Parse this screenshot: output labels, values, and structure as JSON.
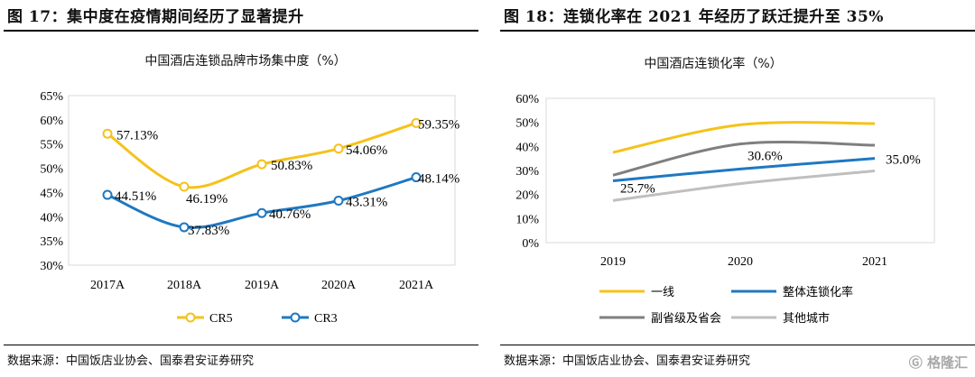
{
  "left_figure": {
    "figure_title": "图 17：集中度在疫情期间经历了显著提升",
    "source": "数据来源：中国饭店业协会、国泰君安证券研究"
  },
  "right_figure": {
    "figure_title": "图 18：连锁化率在 2021 年经历了跃迁提升至 35%",
    "source": "数据来源：中国饭店业协会、国泰君安证券研究"
  },
  "watermark": "格隆汇",
  "chart_data": [
    {
      "type": "line",
      "title": "中国酒店连锁品牌市场集中度（%）",
      "categories": [
        "2017A",
        "2018A",
        "2019A",
        "2020A",
        "2021A"
      ],
      "y_ticks": [
        "30%",
        "35%",
        "40%",
        "45%",
        "50%",
        "55%",
        "60%",
        "65%"
      ],
      "ylim": [
        30,
        65
      ],
      "grid": false,
      "legend_position": "bottom",
      "series": [
        {
          "name": "CR5",
          "color": "#F5C21A",
          "values": [
            57.13,
            46.19,
            50.83,
            54.06,
            59.35
          ],
          "labels": [
            "57.13%",
            "46.19%",
            "50.83%",
            "54.06%",
            "59.35%"
          ]
        },
        {
          "name": "CR3",
          "color": "#1F78C1",
          "values": [
            44.51,
            37.83,
            40.76,
            43.31,
            48.14
          ],
          "labels": [
            "44.51%",
            "37.83%",
            "40.76%",
            "43.31%",
            "48.14%"
          ]
        }
      ]
    },
    {
      "type": "line",
      "title": "中国酒店连锁化率（%）",
      "categories": [
        "2019",
        "2020",
        "2021"
      ],
      "y_ticks": [
        "0%",
        "10%",
        "20%",
        "30%",
        "40%",
        "50%",
        "60%"
      ],
      "ylim": [
        0,
        60
      ],
      "grid": false,
      "legend_position": "bottom",
      "series": [
        {
          "name": "一线",
          "color": "#F5C21A",
          "values": [
            37.5,
            49.0,
            49.5
          ],
          "labels": []
        },
        {
          "name": "整体连锁化率",
          "color": "#1F78C1",
          "values": [
            25.7,
            30.6,
            35.0
          ],
          "labels": [
            "25.7%",
            "30.6%",
            "35.0%"
          ]
        },
        {
          "name": "副省级及省会",
          "color": "#7F7F7F",
          "values": [
            28.0,
            41.0,
            40.5
          ],
          "labels": []
        },
        {
          "name": "其他城市",
          "color": "#BFBFBF",
          "values": [
            17.5,
            24.5,
            29.8
          ],
          "labels": []
        }
      ]
    }
  ]
}
